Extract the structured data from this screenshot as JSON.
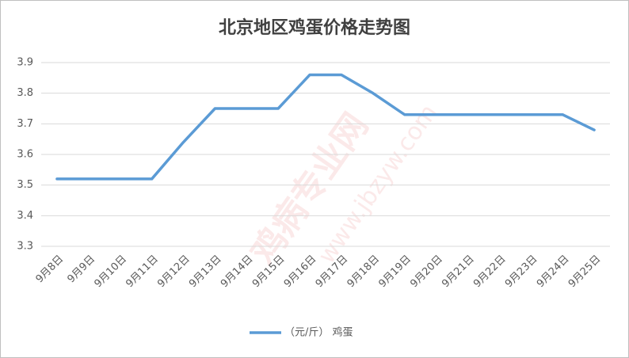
{
  "chart_data": {
    "type": "line",
    "title": "北京地区鸡蛋价格走势图",
    "categories": [
      "9月8日",
      "9月9日",
      "9月10日",
      "9月11日",
      "9月12日",
      "9月13日",
      "9月14日",
      "9月15日",
      "9月16日",
      "9月17日",
      "9月18日",
      "9月19日",
      "9月20日",
      "9月21日",
      "9月22日",
      "9月23日",
      "9月24日",
      "9月25日"
    ],
    "series": [
      {
        "name": "（元/斤） 鸡蛋",
        "color": "#5b9bd5",
        "values": [
          3.52,
          3.52,
          3.52,
          3.52,
          3.64,
          3.75,
          3.75,
          3.75,
          3.86,
          3.86,
          3.8,
          3.73,
          3.73,
          3.73,
          3.73,
          3.73,
          3.73,
          3.68
        ]
      }
    ],
    "ylim": [
      3.3,
      3.9
    ],
    "yticks": [
      3.3,
      3.4,
      3.5,
      3.6,
      3.7,
      3.8,
      3.9
    ],
    "grid": true,
    "legend": "bottom",
    "watermark": [
      "鸡病专业网",
      "www.jbzyw.com"
    ]
  }
}
